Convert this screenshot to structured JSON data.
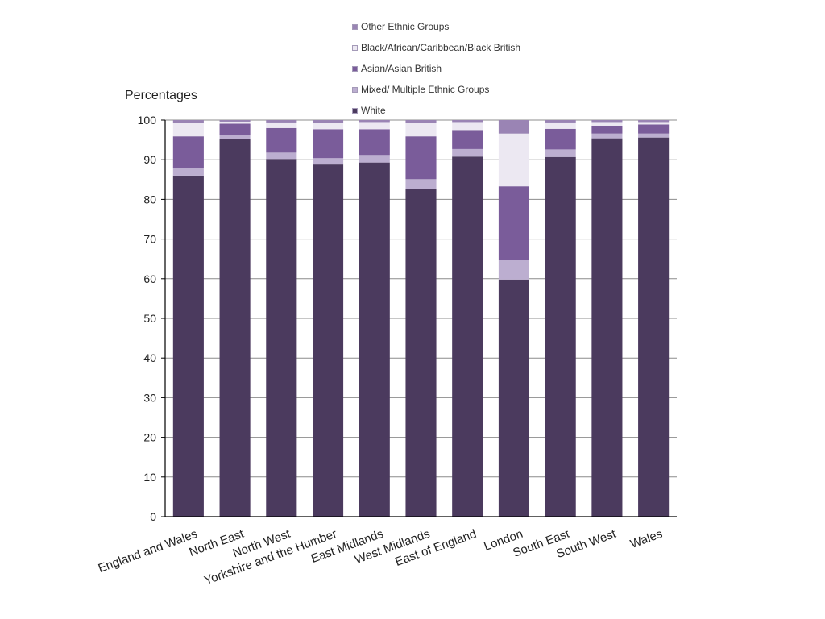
{
  "chart_data": {
    "type": "bar",
    "stacked": true,
    "ylabel": "Percentages",
    "ylim": [
      0,
      100
    ],
    "yticks": [
      0,
      10,
      20,
      30,
      40,
      50,
      60,
      70,
      80,
      90,
      100
    ],
    "grid": true,
    "legend_position": "top",
    "categories": [
      "England and Wales",
      "North East",
      "North West",
      "Yorkshire and the Humber",
      "East Midlands",
      "West Midlands",
      "East of England",
      "London",
      "South East",
      "South West",
      "Wales"
    ],
    "series": [
      {
        "name": "White",
        "color": "#4b3a5e",
        "values": [
          86.0,
          95.3,
          90.2,
          88.8,
          89.3,
          82.7,
          90.8,
          59.8,
          90.7,
          95.4,
          95.6
        ]
      },
      {
        "name": "Mixed/ Multiple Ethnic Groups",
        "color": "#bcaed0",
        "values": [
          2.0,
          0.9,
          1.6,
          1.6,
          1.9,
          2.4,
          1.9,
          5.0,
          1.9,
          1.2,
          1.0
        ]
      },
      {
        "name": "Asian/Asian British",
        "color": "#7a5c9a",
        "values": [
          7.9,
          2.9,
          6.2,
          7.3,
          6.5,
          10.8,
          4.8,
          18.5,
          5.2,
          2.0,
          2.3
        ]
      },
      {
        "name": "Black/African/Caribbean/Black British",
        "color": "#ece8f2",
        "values": [
          3.3,
          0.5,
          1.4,
          1.5,
          1.8,
          3.3,
          2.0,
          13.3,
          1.6,
          0.9,
          0.6
        ]
      },
      {
        "name": "Other Ethnic Groups",
        "color": "#9a84b4",
        "values": [
          0.8,
          0.4,
          0.6,
          0.8,
          0.5,
          0.8,
          0.5,
          3.4,
          0.6,
          0.5,
          0.5
        ]
      }
    ]
  }
}
